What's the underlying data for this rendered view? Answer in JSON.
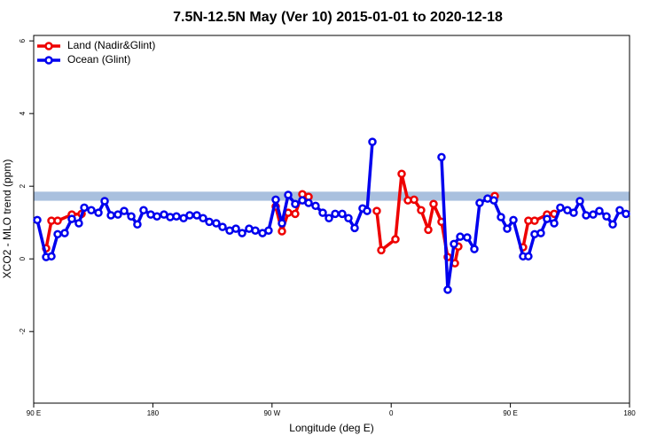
{
  "chart_data": {
    "type": "line",
    "title": "7.5N-12.5N May (Ver 10)   2015-01-01 to 2020-12-18",
    "x_label": "Longitude (deg E)",
    "y_label": "XCO2 - MLO trend (ppm)",
    "xlim": [
      90,
      540
    ],
    "xticks": [
      {
        "value": 90,
        "label": "90 E"
      },
      {
        "value": 180,
        "label": "180"
      },
      {
        "value": 270,
        "label": "90 W"
      },
      {
        "value": 360,
        "label": "0"
      },
      {
        "value": 450,
        "label": "90 E"
      },
      {
        "value": 540,
        "label": "180"
      }
    ],
    "ylim": [
      -3.97,
      6.15
    ],
    "yticks": [
      -2,
      0,
      2,
      4,
      6
    ],
    "legend": "top-left",
    "reference_band": {
      "ylim": [
        1.6,
        1.85
      ],
      "color": "#a9c0de"
    },
    "series": [
      {
        "name": "Land (Nadir&Glint)",
        "color": "#ee0000",
        "x": [
          99.4,
          103.4,
          108.1,
          118.8,
          126.2,
          null,
          272.8,
          277.5,
          282.2,
          287.5,
          292.9,
          297.6,
          null,
          349.1,
          352.5,
          363.2,
          367.9,
          372.6,
          377.3,
          382.6,
          388.0,
          392.0,
          398.0,
          402.7,
          408.1,
          410.7,
          null,
          438.2,
          null,
          459.6,
          463.6,
          468.3,
          477.7,
          483.1
        ],
        "values": [
          0.29,
          1.05,
          1.05,
          1.22,
          1.24,
          null,
          1.44,
          0.76,
          1.27,
          1.24,
          1.78,
          1.71,
          null,
          1.32,
          0.24,
          0.54,
          2.34,
          1.61,
          1.63,
          1.34,
          0.8,
          1.51,
          1.02,
          0.05,
          -0.12,
          0.34,
          null,
          1.73,
          null,
          0.32,
          1.05,
          1.05,
          1.22,
          1.24
        ]
      },
      {
        "name": "Ocean (Glint)",
        "color": "#0000ee",
        "x": [
          92.7,
          99.4,
          103.4,
          108.1,
          113.4,
          118.8,
          124.1,
          128.2,
          133.5,
          138.9,
          143.6,
          148.3,
          153.6,
          158.3,
          163.7,
          168.3,
          173.0,
          178.4,
          183.1,
          188.4,
          193.1,
          197.8,
          203.2,
          207.8,
          213.2,
          217.9,
          222.6,
          227.9,
          232.6,
          238.0,
          242.7,
          247.4,
          252.7,
          257.4,
          262.8,
          267.4,
          272.8,
          277.5,
          282.2,
          287.5,
          292.9,
          297.6,
          302.9,
          308.3,
          313.0,
          317.7,
          323.0,
          327.7,
          332.4,
          338.4,
          341.8,
          345.8,
          null,
          398.0,
          402.7,
          407.4,
          412.1,
          417.4,
          422.8,
          426.8,
          432.8,
          437.5,
          442.9,
          447.6,
          452.3,
          459.6,
          463.6,
          468.3,
          473.0,
          477.7,
          483.1,
          487.7,
          493.1,
          497.8,
          502.5,
          507.2,
          512.5,
          517.2,
          522.6,
          527.3,
          532.6,
          537.3
        ],
        "values": [
          1.07,
          0.05,
          0.07,
          0.68,
          0.71,
          1.1,
          0.98,
          1.41,
          1.34,
          1.27,
          1.59,
          1.2,
          1.22,
          1.32,
          1.17,
          0.95,
          1.34,
          1.22,
          1.17,
          1.22,
          1.15,
          1.17,
          1.12,
          1.2,
          1.2,
          1.12,
          1.02,
          0.98,
          0.88,
          0.78,
          0.83,
          0.71,
          0.83,
          0.78,
          0.71,
          0.78,
          1.63,
          0.98,
          1.76,
          1.51,
          1.61,
          1.54,
          1.46,
          1.27,
          1.12,
          1.24,
          1.24,
          1.12,
          0.85,
          1.39,
          1.32,
          3.22,
          null,
          2.8,
          -0.85,
          0.41,
          0.61,
          0.59,
          0.27,
          1.54,
          1.66,
          1.61,
          1.15,
          0.83,
          1.07,
          0.07,
          0.07,
          0.68,
          0.71,
          1.1,
          0.98,
          1.41,
          1.34,
          1.27,
          1.59,
          1.2,
          1.22,
          1.32,
          1.17,
          0.95,
          1.34,
          1.24
        ]
      }
    ]
  }
}
